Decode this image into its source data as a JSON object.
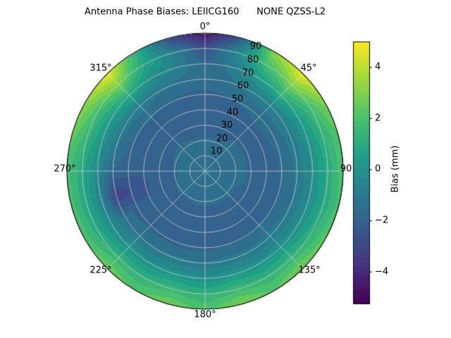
{
  "chart_data": {
    "type": "heatmap",
    "projection": "polar",
    "title": "Antenna Phase Biases: LEIICG160      NONE QZSS-L2",
    "theta_tick_labels": [
      "0°",
      "45°",
      "90",
      "135°",
      "180°",
      "225°",
      "270°",
      "315°"
    ],
    "r_tick_labels": [
      "10",
      "20",
      "30",
      "40",
      "50",
      "60",
      "70",
      "80",
      "90"
    ],
    "r_ticks": [
      10,
      20,
      30,
      40,
      50,
      60,
      70,
      80,
      90
    ],
    "rlim": [
      0,
      90
    ],
    "colorbar": {
      "label": "Bias (mm)",
      "tick_labels": [
        "4",
        "2",
        "0",
        "−2",
        "−4"
      ],
      "tick_values": [
        4,
        2,
        0,
        -2,
        -4
      ],
      "vmin": -5.25,
      "vmax": 5.0
    },
    "colormap": {
      "name": "viridis",
      "stops": [
        [
          0.0,
          "#440154"
        ],
        [
          0.14,
          "#46327e"
        ],
        [
          0.29,
          "#365c8d"
        ],
        [
          0.43,
          "#277f8e"
        ],
        [
          0.57,
          "#1fa187"
        ],
        [
          0.71,
          "#4ac16d"
        ],
        [
          0.86,
          "#a0da39"
        ],
        [
          1.0,
          "#fde725"
        ]
      ]
    },
    "grid": {
      "azimuth_deg": [
        0,
        15,
        30,
        45,
        60,
        75,
        90,
        105,
        120,
        135,
        150,
        165,
        180,
        195,
        210,
        225,
        240,
        255,
        270,
        285,
        300,
        315,
        330,
        345
      ],
      "zenith_deg": [
        0,
        10,
        20,
        30,
        40,
        50,
        60,
        70,
        80,
        90
      ],
      "bias_mm": [
        [
          -1.2,
          -1.4,
          -1.7,
          -1.9,
          -2.0,
          -1.9,
          -1.5,
          -1.8,
          -2.6,
          -4.9
        ],
        [
          -1.2,
          -1.4,
          -1.7,
          -1.9,
          -2.0,
          -1.8,
          -1.4,
          -1.0,
          -0.5,
          -2.5
        ],
        [
          -1.2,
          -1.4,
          -1.7,
          -1.9,
          -2.0,
          -1.7,
          -1.0,
          0.3,
          1.8,
          3.2
        ],
        [
          -1.2,
          -1.4,
          -1.6,
          -1.8,
          -1.9,
          -1.6,
          -0.8,
          1.2,
          3.1,
          4.8
        ],
        [
          -1.2,
          -1.4,
          -1.6,
          -1.8,
          -1.9,
          -1.6,
          -0.9,
          0.4,
          1.8,
          3.0
        ],
        [
          -1.2,
          -1.4,
          -1.6,
          -1.8,
          -1.9,
          -1.7,
          -1.0,
          0.0,
          1.2,
          2.2
        ],
        [
          -1.2,
          -1.4,
          -1.6,
          -1.8,
          -1.9,
          -1.7,
          -1.1,
          -0.2,
          1.0,
          2.2
        ],
        [
          -1.2,
          -1.4,
          -1.6,
          -1.8,
          -2.0,
          -1.8,
          -1.2,
          -0.3,
          0.9,
          2.0
        ],
        [
          -1.2,
          -1.4,
          -1.7,
          -1.9,
          -2.0,
          -1.8,
          -1.1,
          -0.1,
          1.2,
          2.5
        ],
        [
          -1.2,
          -1.4,
          -1.7,
          -1.9,
          -2.0,
          -1.7,
          -1.0,
          0.2,
          1.6,
          2.9
        ],
        [
          -1.2,
          -1.4,
          -1.7,
          -1.9,
          -2.0,
          -1.8,
          -1.1,
          0.0,
          1.4,
          2.3
        ],
        [
          -1.2,
          -1.4,
          -1.7,
          -1.9,
          -2.0,
          -1.8,
          -1.0,
          0.2,
          1.7,
          3.0
        ],
        [
          -1.2,
          -1.4,
          -1.7,
          -1.9,
          -2.1,
          -1.9,
          -1.2,
          -0.1,
          1.2,
          2.1
        ],
        [
          -1.2,
          -1.4,
          -1.7,
          -1.9,
          -2.1,
          -1.9,
          -1.1,
          0.1,
          1.6,
          2.8
        ],
        [
          -1.2,
          -1.4,
          -1.7,
          -2.0,
          -2.1,
          -1.9,
          -1.2,
          -0.1,
          1.3,
          2.2
        ],
        [
          -1.2,
          -1.4,
          -1.7,
          -2.0,
          -2.1,
          -1.9,
          -1.2,
          0.0,
          1.5,
          2.7
        ],
        [
          -1.2,
          -1.4,
          -1.7,
          -2.0,
          -2.2,
          -2.0,
          -1.4,
          -0.3,
          1.0,
          2.1
        ],
        [
          -1.2,
          -1.5,
          -1.8,
          -2.0,
          -2.3,
          -2.7,
          -3.3,
          -0.8,
          0.8,
          2.0
        ],
        [
          -1.2,
          -1.5,
          -1.8,
          -2.0,
          -2.2,
          -2.1,
          -1.8,
          -0.5,
          0.9,
          1.9
        ],
        [
          -1.2,
          -1.4,
          -1.7,
          -2.0,
          -2.1,
          -1.9,
          -1.2,
          0.0,
          1.4,
          2.5
        ],
        [
          -1.2,
          -1.4,
          -1.7,
          -1.9,
          -2.0,
          -1.8,
          -1.0,
          0.4,
          1.9,
          3.3
        ],
        [
          -1.2,
          -1.4,
          -1.6,
          -1.9,
          -2.0,
          -1.7,
          -0.9,
          1.0,
          3.0,
          4.8
        ],
        [
          -1.2,
          -1.4,
          -1.7,
          -1.9,
          -2.0,
          -1.8,
          -1.2,
          -0.2,
          0.8,
          1.2
        ],
        [
          -1.2,
          -1.4,
          -1.7,
          -1.9,
          -2.0,
          -1.9,
          -1.4,
          -0.9,
          -0.8,
          -3.0
        ]
      ]
    },
    "contour_level_step_mm": 0.5
  }
}
